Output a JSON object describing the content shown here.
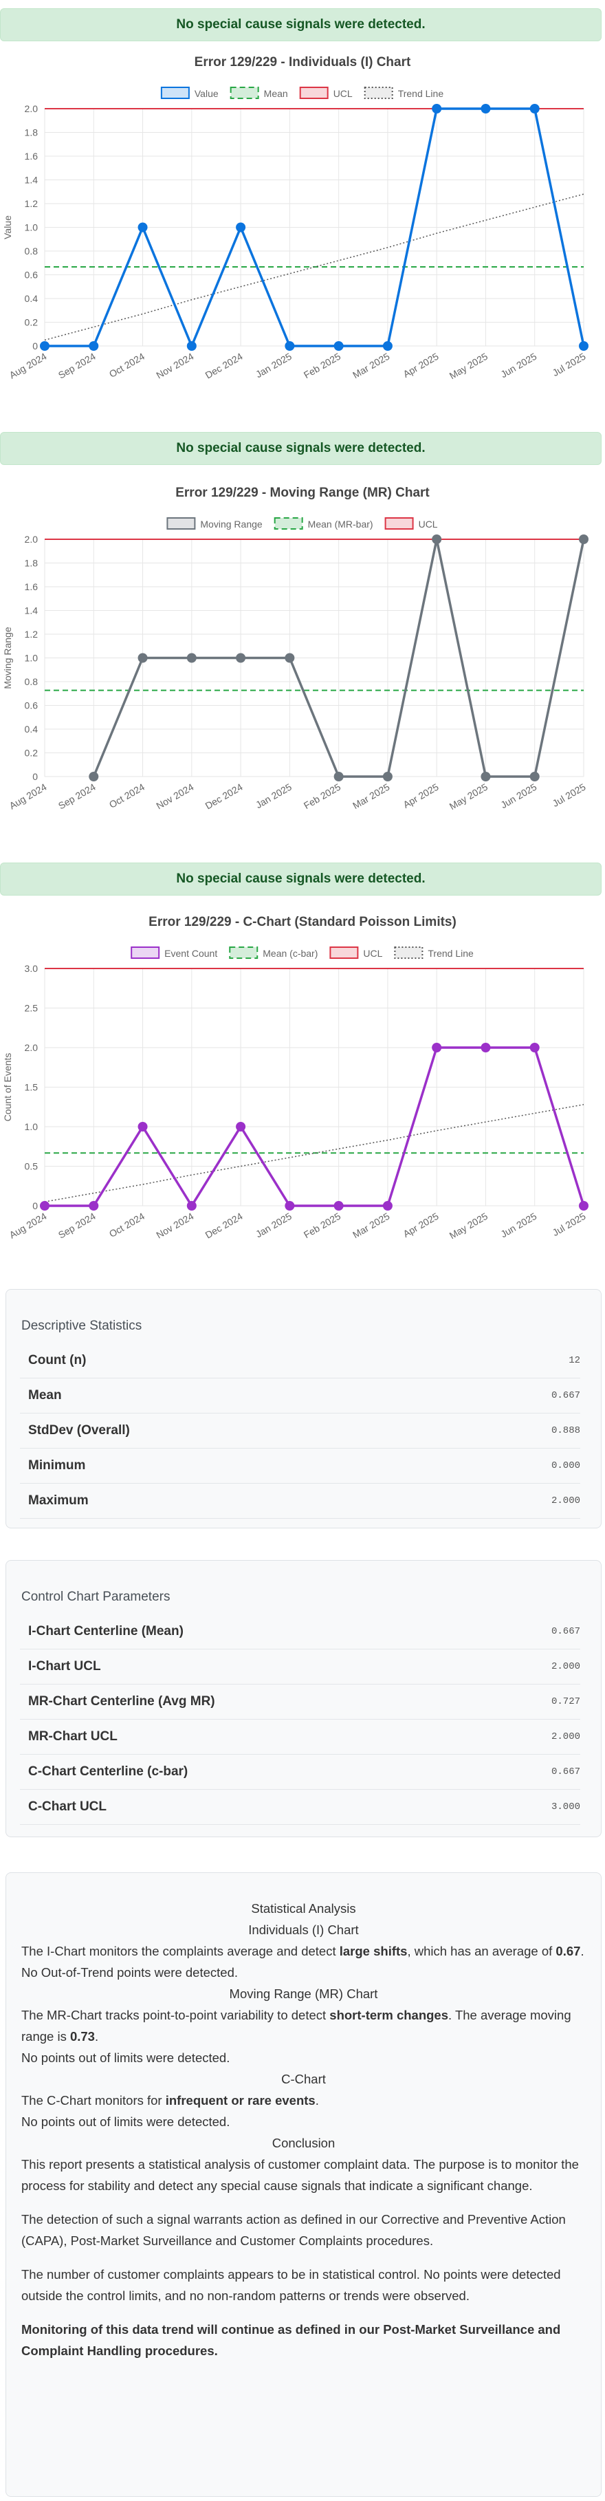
{
  "chart_data": [
    {
      "type": "line",
      "annotation": "No special cause signals were detected.",
      "title": "Error 129/229 - Individuals (I) Chart",
      "ylabel": "Value",
      "categories": [
        "Aug 2024",
        "Sep 2024",
        "Oct 2024",
        "Nov 2024",
        "Dec 2024",
        "Jan 2025",
        "Feb 2025",
        "Mar 2025",
        "Apr 2025",
        "May 2025",
        "Jun 2025",
        "Jul 2025"
      ],
      "series": [
        {
          "name": "Value",
          "color": "#0b74de",
          "values": [
            0,
            0,
            1,
            0,
            1,
            0,
            0,
            0,
            2,
            2,
            2,
            0
          ]
        },
        {
          "name": "Mean",
          "color": "#28a745",
          "style": "dashed",
          "value": 0.667
        },
        {
          "name": "UCL",
          "color": "#dc3545",
          "value": 2
        },
        {
          "name": "Trend Line",
          "color": "#555555",
          "style": "dotted",
          "values": [
            0.05,
            0.16,
            0.27,
            0.39,
            0.5,
            0.61,
            0.72,
            0.83,
            0.95,
            1.06,
            1.17,
            1.28
          ]
        }
      ],
      "ylim": [
        0,
        2
      ],
      "yticks": [
        0,
        0.2,
        0.4,
        0.6,
        0.8,
        {
          "value": 1,
          "label": "1.0"
        },
        1.2,
        1.4,
        1.6,
        1.8,
        {
          "value": 2,
          "label": "2.0"
        }
      ],
      "grid": true
    },
    {
      "type": "line",
      "annotation": "No special cause signals were detected.",
      "title": "Error 129/229 - Moving Range (MR) Chart",
      "ylabel": "Moving Range",
      "categories": [
        "Aug 2024",
        "Sep 2024",
        "Oct 2024",
        "Nov 2024",
        "Dec 2024",
        "Jan 2025",
        "Feb 2025",
        "Mar 2025",
        "Apr 2025",
        "May 2025",
        "Jun 2025",
        "Jul 2025"
      ],
      "series": [
        {
          "name": "Moving Range",
          "color": "#6c757d",
          "values": [
            null,
            0,
            1,
            1,
            1,
            1,
            0,
            0,
            2,
            0,
            0,
            2
          ]
        },
        {
          "name": "Mean (MR-bar)",
          "color": "#28a745",
          "style": "dashed",
          "value": 0.727
        },
        {
          "name": "UCL",
          "color": "#dc3545",
          "value": 2
        }
      ],
      "ylim": [
        0,
        2
      ],
      "yticks": [
        0,
        0.2,
        0.4,
        0.6,
        0.8,
        {
          "value": 1,
          "label": "1.0"
        },
        1.2,
        1.4,
        1.6,
        1.8,
        {
          "value": 2,
          "label": "2.0"
        }
      ],
      "grid": true
    },
    {
      "type": "line",
      "annotation": "No special cause signals were detected.",
      "title": "Error 129/229 - C-Chart (Standard Poisson Limits)",
      "ylabel": "Count of Events",
      "categories": [
        "Aug 2024",
        "Sep 2024",
        "Oct 2024",
        "Nov 2024",
        "Dec 2024",
        "Jan 2025",
        "Feb 2025",
        "Mar 2025",
        "Apr 2025",
        "May 2025",
        "Jun 2025",
        "Jul 2025"
      ],
      "series": [
        {
          "name": "Event Count",
          "color": "#9b30c9",
          "values": [
            0,
            0,
            1,
            0,
            1,
            0,
            0,
            0,
            2,
            2,
            2,
            0
          ]
        },
        {
          "name": "Mean (c-bar)",
          "color": "#28a745",
          "style": "dashed",
          "value": 0.667
        },
        {
          "name": "UCL",
          "color": "#dc3545",
          "value": 3
        },
        {
          "name": "Trend Line",
          "color": "#555555",
          "style": "dotted",
          "values": [
            0.05,
            0.16,
            0.27,
            0.39,
            0.5,
            0.61,
            0.72,
            0.83,
            0.95,
            1.06,
            1.17,
            1.28
          ]
        }
      ],
      "ylim": [
        0,
        3
      ],
      "yticks": [
        0,
        0.5,
        {
          "value": 1,
          "label": "1.0"
        },
        1.5,
        {
          "value": 2,
          "label": "2.0"
        },
        2.5,
        {
          "value": 3,
          "label": "3.0"
        }
      ],
      "grid": true
    }
  ],
  "tables": [
    {
      "title": "Descriptive Statistics",
      "rows": [
        [
          "Count (n)",
          "12"
        ],
        [
          "Mean",
          "0.667"
        ],
        [
          "StdDev (Overall)",
          "0.888"
        ],
        [
          "Minimum",
          "0.000"
        ],
        [
          "Maximum",
          "2.000"
        ]
      ]
    },
    {
      "title": "Control Chart Parameters",
      "rows": [
        [
          "I-Chart Centerline (Mean)",
          "0.667"
        ],
        [
          "I-Chart UCL",
          "2.000"
        ],
        [
          "MR-Chart Centerline (Avg MR)",
          "0.727"
        ],
        [
          "MR-Chart UCL",
          "2.000"
        ],
        [
          "C-Chart Centerline (c-bar)",
          "0.667"
        ],
        [
          "C-Chart UCL",
          "3.000"
        ]
      ]
    }
  ],
  "analysis": {
    "title": "Statistical Analysis",
    "sections": [
      {
        "heading": "Individuals (I) Chart",
        "paragraphs": [
          [
            {
              "text": "The I-Chart monitors the complaints average and detect "
            },
            {
              "text": "large shifts",
              "bold": true
            },
            {
              "text": ", which has an average of "
            },
            {
              "text": "0.67",
              "bold": true
            },
            {
              "text": "."
            }
          ],
          [
            {
              "text": "No Out-of-Trend points were detected."
            }
          ]
        ]
      },
      {
        "heading": "Moving Range (MR) Chart",
        "paragraphs": [
          [
            {
              "text": "The MR-Chart tracks point-to-point variability to detect "
            },
            {
              "text": "short-term changes",
              "bold": true
            },
            {
              "text": ". The average moving range is "
            },
            {
              "text": "0.73",
              "bold": true
            },
            {
              "text": "."
            }
          ],
          [
            {
              "text": "No points out of limits were detected."
            }
          ]
        ]
      },
      {
        "heading": "C-Chart",
        "paragraphs": [
          [
            {
              "text": "The C-Chart monitors for "
            },
            {
              "text": "infrequent or rare events",
              "bold": true
            },
            {
              "text": "."
            }
          ],
          [
            {
              "text": "No points out of limits were detected."
            }
          ]
        ]
      },
      {
        "heading": "Conclusion",
        "paragraphs": [
          [
            {
              "text": "This report presents a statistical analysis of customer complaint data. The purpose is to monitor the process for stability and detect any special cause signals that indicate a significant change."
            }
          ],
          [
            {
              "text": "The detection of such a signal warrants action as defined in our Corrective and Preventive Action (CAPA), Post-Market Surveillance and Customer Complaints procedures."
            }
          ],
          [
            {
              "text": "The number of customer complaints appears to be in statistical control. No points were detected outside the control limits, and no non-random patterns or trends were observed."
            }
          ],
          [
            {
              "text": "Monitoring of this data trend will continue as defined in our Post-Market Surveillance and Complaint Handling procedures.",
              "bold": true
            }
          ]
        ]
      }
    ]
  }
}
